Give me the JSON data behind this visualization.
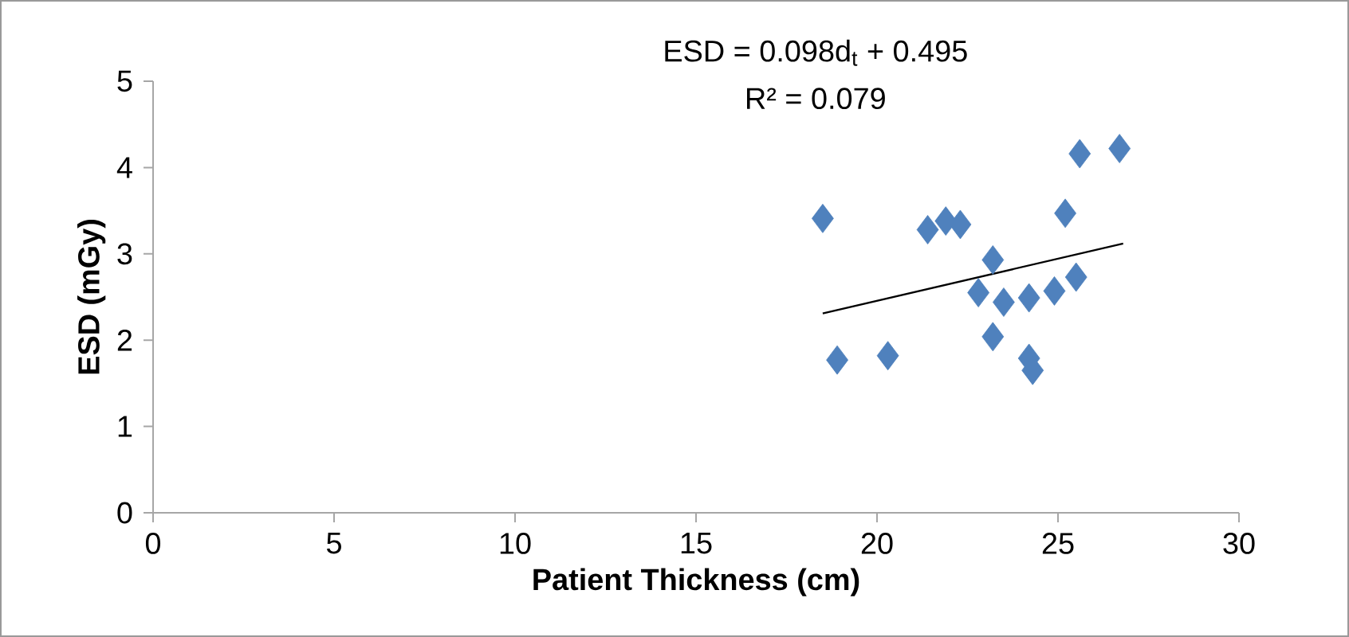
{
  "chart_data": {
    "type": "scatter",
    "xlabel": "Patient Thickness (cm)",
    "ylabel": "ESD (mGy)",
    "annotations": [
      "ESD = 0.098d$_{t}$ + 0.495",
      "R² = 0.079"
    ],
    "xlim": [
      0,
      30
    ],
    "ylim": [
      0,
      5
    ],
    "xticks": [
      0,
      5,
      10,
      15,
      20,
      25,
      30
    ],
    "yticks": [
      0,
      1,
      2,
      3,
      4,
      5
    ],
    "marker": "diamond",
    "series": [
      {
        "color": "#4f81bd",
        "x": [
          18.5,
          18.9,
          20.3,
          21.4,
          21.9,
          22.3,
          23.2,
          22.8,
          23.2,
          23.5,
          24.2,
          24.2,
          24.3,
          24.9,
          25.5,
          25.2,
          25.6,
          26.7
        ],
        "values": [
          3.41,
          1.77,
          1.82,
          3.28,
          3.38,
          3.34,
          2.93,
          2.55,
          2.04,
          2.44,
          2.49,
          1.79,
          1.65,
          2.57,
          2.73,
          3.47,
          4.16,
          4.22
        ]
      },
      {
        "type": "line",
        "color": "#000000",
        "marker": "none",
        "x": [
          18.5,
          26.8
        ],
        "values": [
          2.31,
          3.12
        ]
      }
    ]
  }
}
